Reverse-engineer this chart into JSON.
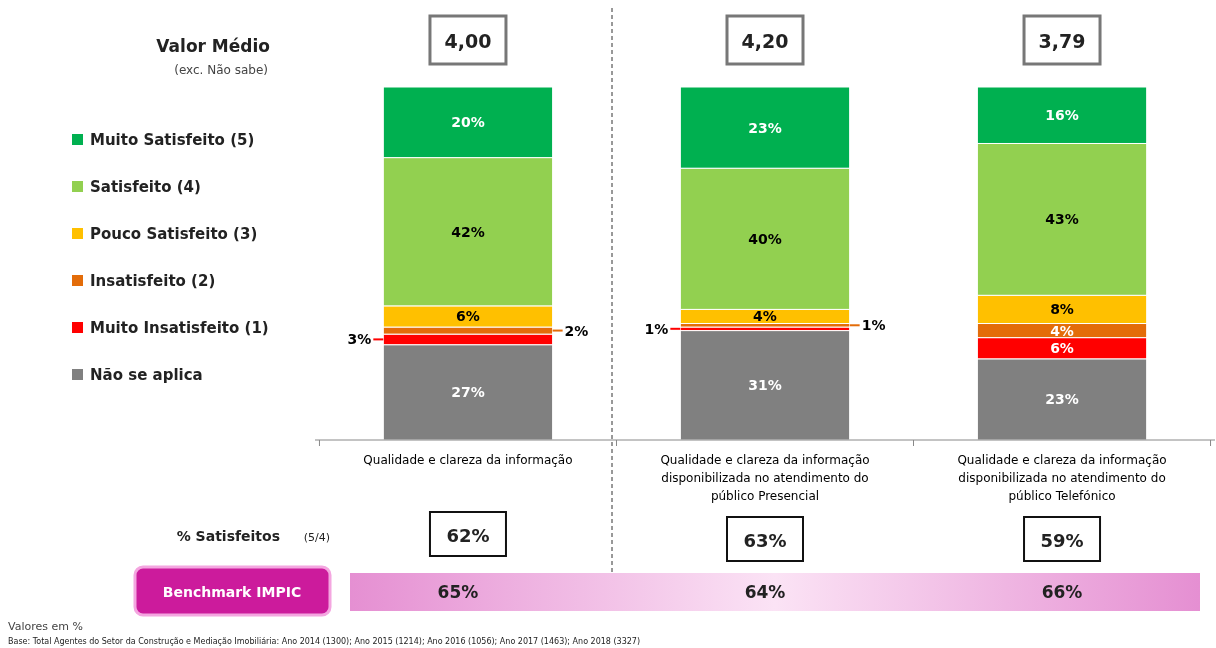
{
  "chart_data": {
    "type": "bar",
    "stacked": true,
    "legend": "left",
    "tick_labels": "x",
    "categories": [
      "Qualidade e clareza da informação",
      "Qualidade e clareza da informação disponibilizada no atendimento do público Presencial",
      "Qualidade e clareza da informação disponibilizada no atendimento do público Telefónico"
    ],
    "series": [
      {
        "name": "Não se aplica",
        "color": "#808080",
        "values": [
          27,
          31,
          23
        ],
        "value_labels": [
          "27%",
          "31%",
          "23%"
        ]
      },
      {
        "name": "Muito Insatisfeito (1)",
        "color": "#ff0000",
        "values": [
          3,
          1,
          6
        ],
        "value_labels": [
          "3%",
          "1%",
          "6%"
        ]
      },
      {
        "name": "Insatisfeito (2)",
        "color": "#e36c09",
        "values": [
          2,
          1,
          4
        ],
        "value_labels": [
          "2%",
          "1%",
          "4%"
        ]
      },
      {
        "name": "Pouco Satisfeito (3)",
        "color": "#ffc000",
        "values": [
          6,
          4,
          8
        ],
        "value_labels": [
          "6%",
          "4%",
          "8%"
        ]
      },
      {
        "name": "Satisfeito (4)",
        "color": "#92d050",
        "values": [
          42,
          40,
          43
        ],
        "value_labels": [
          "42%",
          "40%",
          "43%"
        ]
      },
      {
        "name": "Muito Satisfeito (5)",
        "color": "#00b050",
        "values": [
          20,
          23,
          16
        ],
        "value_labels": [
          "20%",
          "23%",
          "16%"
        ]
      }
    ],
    "annotations": [
      "Valor Médio",
      "(exc. Não sabe)",
      "4,00",
      "4,20",
      "3,79",
      "% Satisfeitos",
      "(5/4)",
      "62%",
      "63%",
      "59%",
      "Benchmark IMPIC",
      "65%",
      "64%",
      "66%",
      "Valores em %",
      "Base: Total Agentes do Setor da Construção e Mediação Imobiliária: Ano 2014 (1300); Ano 2015 (1214); Ano 2016 (1056); Ano 2017 (1463); Ano 2018 (3327)"
    ]
  }
}
